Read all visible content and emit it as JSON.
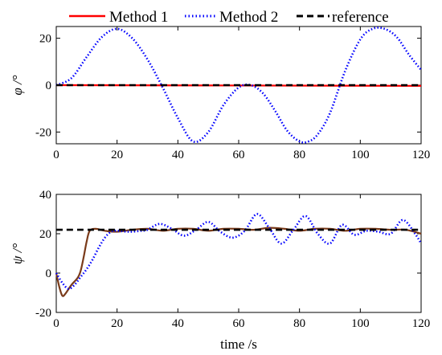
{
  "legend": {
    "entries": [
      {
        "label": "Method 1",
        "color": "#ff0000",
        "style": "solid"
      },
      {
        "label": "Method 2",
        "color": "#0000ff",
        "style": "dotted"
      },
      {
        "label": "reference",
        "color": "#000000",
        "style": "dashed"
      }
    ]
  },
  "chart_data": [
    {
      "type": "line",
      "ylabel": "φ /°",
      "xlabel": "",
      "xlim": [
        0,
        120
      ],
      "ylim": [
        -25,
        25
      ],
      "xticks": [
        0,
        20,
        40,
        60,
        80,
        100,
        120
      ],
      "yticks": [
        -20,
        0,
        20
      ],
      "grid": false,
      "legend_position": "top",
      "series": [
        {
          "name": "Method 1",
          "color": "#ff0000",
          "style": "solid",
          "x": [
            0,
            120
          ],
          "y": [
            0,
            -0.3
          ]
        },
        {
          "name": "Method 2",
          "color": "#0000ff",
          "style": "dotted",
          "x": [
            0,
            5,
            10,
            15,
            20,
            25,
            30,
            35,
            40,
            45,
            50,
            55,
            60,
            64,
            68,
            72,
            76,
            80,
            83,
            86,
            90,
            95,
            100,
            104,
            108,
            112,
            116,
            120
          ],
          "y": [
            0,
            3,
            12,
            20.5,
            24,
            20,
            11,
            -1,
            -14,
            -24,
            -20,
            -8.5,
            -1,
            0,
            -3.5,
            -11,
            -19.5,
            -24,
            -24,
            -21,
            -12,
            6,
            19.5,
            24,
            24,
            20.5,
            13,
            6.5
          ]
        },
        {
          "name": "reference",
          "color": "#000000",
          "style": "dashed",
          "x": [
            0,
            120
          ],
          "y": [
            0,
            0
          ]
        }
      ]
    },
    {
      "type": "line",
      "ylabel": "ψ /°",
      "xlabel": "time /s",
      "xlim": [
        0,
        120
      ],
      "ylim": [
        -20,
        40
      ],
      "xticks": [
        0,
        20,
        40,
        60,
        80,
        100,
        120
      ],
      "yticks": [
        -20,
        0,
        20,
        40
      ],
      "grid": false,
      "series": [
        {
          "name": "Method 1",
          "color": "#7a3b1a",
          "style": "solid",
          "x": [
            0,
            1,
            2,
            3,
            5,
            7,
            8,
            9,
            10,
            11,
            13,
            16,
            20,
            25,
            30,
            35,
            40,
            45,
            50,
            55,
            60,
            65,
            70,
            75,
            80,
            85,
            90,
            95,
            100,
            105,
            110,
            115,
            120
          ],
          "y": [
            0,
            -7,
            -11.5,
            -10.5,
            -6,
            -2.5,
            1,
            8,
            16,
            21.5,
            22.5,
            21.5,
            21,
            22,
            22.5,
            21.5,
            22.5,
            22.5,
            21.5,
            22.5,
            22.5,
            22,
            23,
            22.5,
            21.5,
            22.5,
            22.5,
            21.5,
            22.5,
            22.5,
            22,
            22,
            20
          ]
        },
        {
          "name": "Method 2",
          "color": "#0000ff",
          "style": "dotted",
          "x": [
            0,
            2,
            4,
            6,
            8,
            10,
            12,
            14,
            16,
            18,
            20,
            24,
            28,
            30,
            34,
            38,
            42,
            46,
            50,
            54,
            58,
            62,
            66,
            70,
            74,
            78,
            82,
            86,
            90,
            94,
            98,
            102,
            106,
            110,
            114,
            118,
            120
          ],
          "y": [
            0,
            -5,
            -8,
            -6,
            -2,
            2,
            7,
            13,
            18,
            21,
            21.5,
            21,
            21.5,
            22,
            25,
            22.5,
            19,
            22,
            26,
            21,
            18,
            21.5,
            30,
            23,
            15,
            22,
            29,
            20,
            15,
            24.5,
            19.5,
            21.5,
            21,
            20,
            27,
            20,
            15
          ]
        },
        {
          "name": "reference",
          "color": "#000000",
          "style": "dashed",
          "x": [
            0,
            120
          ],
          "y": [
            22,
            22
          ]
        }
      ]
    }
  ]
}
